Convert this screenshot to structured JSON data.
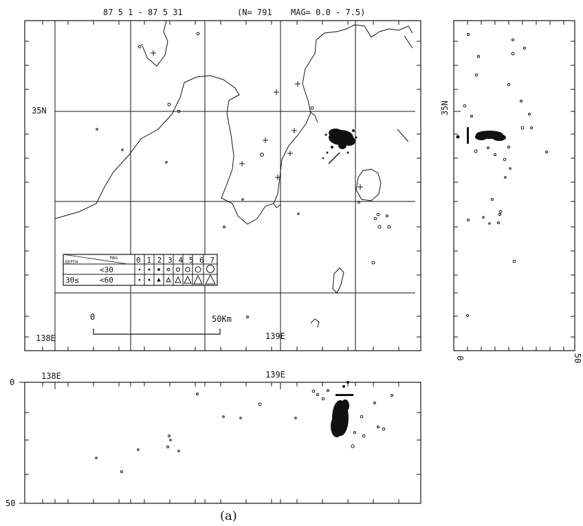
{
  "header": {
    "period": "87  5  1 - 87  5 31",
    "count": "(N= 791",
    "mag": "MAG=  0.0 -  7.5)"
  },
  "map": {
    "lat_label": "35N",
    "lon_labels": [
      "138E",
      "139E"
    ],
    "scale": {
      "start": "0",
      "end": "50Km"
    }
  },
  "legend": {
    "header_depth": "DEPTH",
    "header_mag": "MAG",
    "mag_classes": "01234567",
    "row1_depth": "<30",
    "row2_depth_from": "30≤",
    "row2_depth_to": "<60"
  },
  "cross_section_ns": {
    "lat_label": "35N",
    "depth_start": "0",
    "depth_end": "50"
  },
  "cross_section_ew": {
    "lon_labels": [
      "138E",
      "139E"
    ],
    "depth_start": "0",
    "depth_end": "50"
  },
  "caption": "(a)"
}
